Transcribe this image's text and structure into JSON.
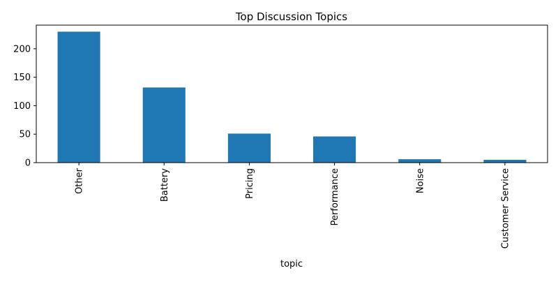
{
  "chart_data": {
    "type": "bar",
    "title": "Top Discussion Topics",
    "xlabel": "topic",
    "ylabel": "",
    "categories": [
      "Other",
      "Battery",
      "Pricing",
      "Performance",
      "Noise",
      "Customer Service"
    ],
    "values": [
      230,
      132,
      51,
      46,
      6,
      5
    ],
    "ylim": [
      0,
      241.5
    ],
    "yticks": [
      0,
      50,
      100,
      150,
      200
    ],
    "bar_color": "#1f77b4",
    "grid": false,
    "legend": "none",
    "x_tick_rotation": "vertical"
  }
}
